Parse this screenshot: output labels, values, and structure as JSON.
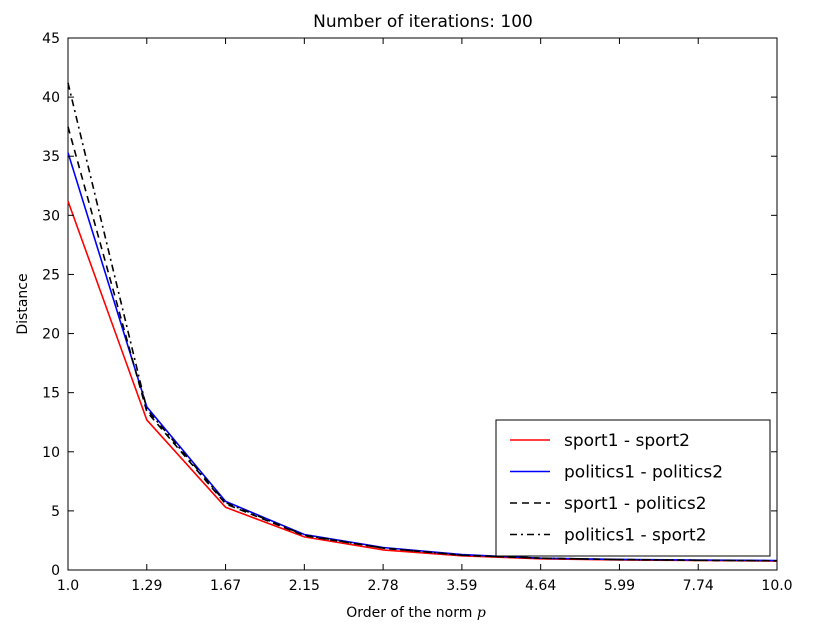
{
  "chart_data": {
    "type": "line",
    "title": "Number of iterations: 100",
    "xlabel": "Order of the norm",
    "xlabel_symbol": "p",
    "ylabel": "Distance",
    "x": [
      "1.0",
      "1.29",
      "1.67",
      "2.15",
      "2.78",
      "3.59",
      "4.64",
      "5.99",
      "7.74",
      "10.0"
    ],
    "ylim": [
      0,
      45
    ],
    "yticks": [
      "0",
      "5",
      "10",
      "15",
      "20",
      "25",
      "30",
      "35",
      "40",
      "45"
    ],
    "grid": false,
    "legend_position": "lower-right",
    "series": [
      {
        "name": "sport1 - sport2",
        "color": "#ff0000",
        "dash": "solid",
        "values": [
          31.2,
          12.7,
          5.3,
          2.8,
          1.7,
          1.2,
          0.95,
          0.85,
          0.8,
          0.75
        ]
      },
      {
        "name": "politics1 - politics2",
        "color": "#0000ff",
        "dash": "solid",
        "values": [
          35.3,
          13.8,
          5.8,
          3.0,
          1.9,
          1.3,
          1.0,
          0.9,
          0.85,
          0.8
        ]
      },
      {
        "name": "sport1 - politics2",
        "color": "#000000",
        "dash": "dashed",
        "values": [
          37.5,
          13.4,
          5.6,
          2.9,
          1.85,
          1.25,
          1.0,
          0.88,
          0.82,
          0.78
        ]
      },
      {
        "name": "politics1 - sport2",
        "color": "#000000",
        "dash": "dashdot",
        "values": [
          41.2,
          13.6,
          5.7,
          2.95,
          1.85,
          1.25,
          1.0,
          0.88,
          0.82,
          0.78
        ]
      }
    ]
  }
}
